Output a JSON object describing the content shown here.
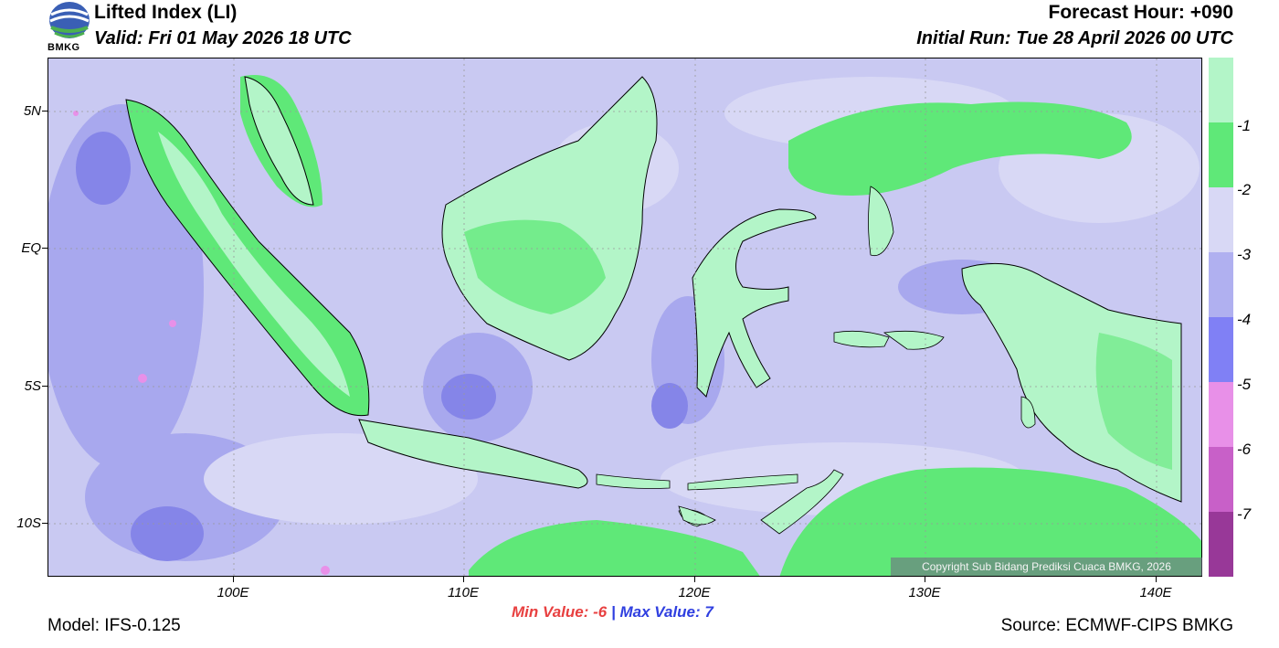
{
  "header": {
    "title": "Lifted Index (LI)",
    "valid": "Valid: Fri 01 May 2026 18 UTC",
    "forecast_hour": "Forecast Hour: +090",
    "initial_run": "Initial Run: Tue 28 April 2026 00 UTC",
    "logo_text": "BMKG"
  },
  "axes": {
    "latitudes": [
      "5N",
      "EQ",
      "5S",
      "10S"
    ],
    "longitudes": [
      "100E",
      "110E",
      "120E",
      "130E",
      "140E"
    ]
  },
  "legend": {
    "labels": [
      "-1",
      "-2",
      "-3",
      "-4",
      "-5",
      "-6",
      "-7"
    ],
    "colors": [
      "#b3f5c8",
      "#5fe878",
      "#d8d8f5",
      "#b0b0f0",
      "#8080f5",
      "#e890e8",
      "#c860c8",
      "#983898"
    ]
  },
  "footer": {
    "model": "Model: IFS-0.125",
    "source": "Source: ECMWF-CIPS BMKG",
    "min_label": "Min Value:",
    "min_value": "-6",
    "separator": "|",
    "max_label": "Max Value:",
    "max_value": "7",
    "copyright": "Copyright Sub Bidang Prediksi Cuaca BMKG, 2026"
  },
  "map_colors": {
    "base": "#c9c9f2",
    "light": "#d8d8f5",
    "mid": "#a8a8ee",
    "deep": "#8585e8",
    "land_light": "#b3f5c8",
    "land_green": "#5fe878",
    "pink": "#e890e8"
  }
}
